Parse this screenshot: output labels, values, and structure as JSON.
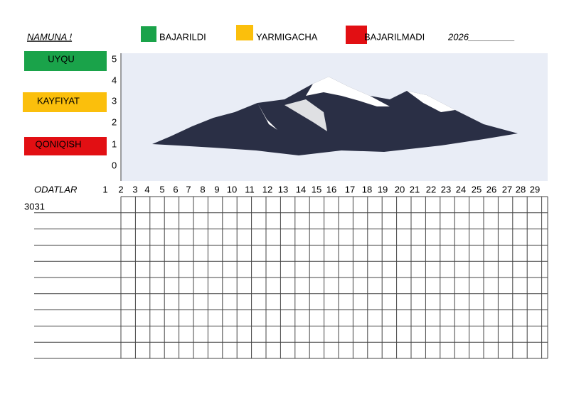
{
  "header": {
    "title": "NAMUNA !",
    "year": "2026_________"
  },
  "legend": [
    {
      "label": "BAJARILDI"
    },
    {
      "label": "YARMIGACHA"
    },
    {
      "label": "BAJARILMADI"
    }
  ],
  "ratings": [
    "UYQU",
    "KAYFIYAT",
    "QONIQISH"
  ],
  "scale": [
    5,
    4,
    3,
    2,
    1,
    0
  ],
  "table": {
    "title": "ODATLAR",
    "days": [
      1,
      2,
      3,
      4,
      5,
      6,
      7,
      8,
      9,
      10,
      11,
      12,
      13,
      14,
      15,
      16,
      17,
      18,
      19,
      20,
      21,
      22,
      23,
      24,
      25,
      26,
      27,
      28,
      29
    ],
    "overflow": "3031"
  }
}
